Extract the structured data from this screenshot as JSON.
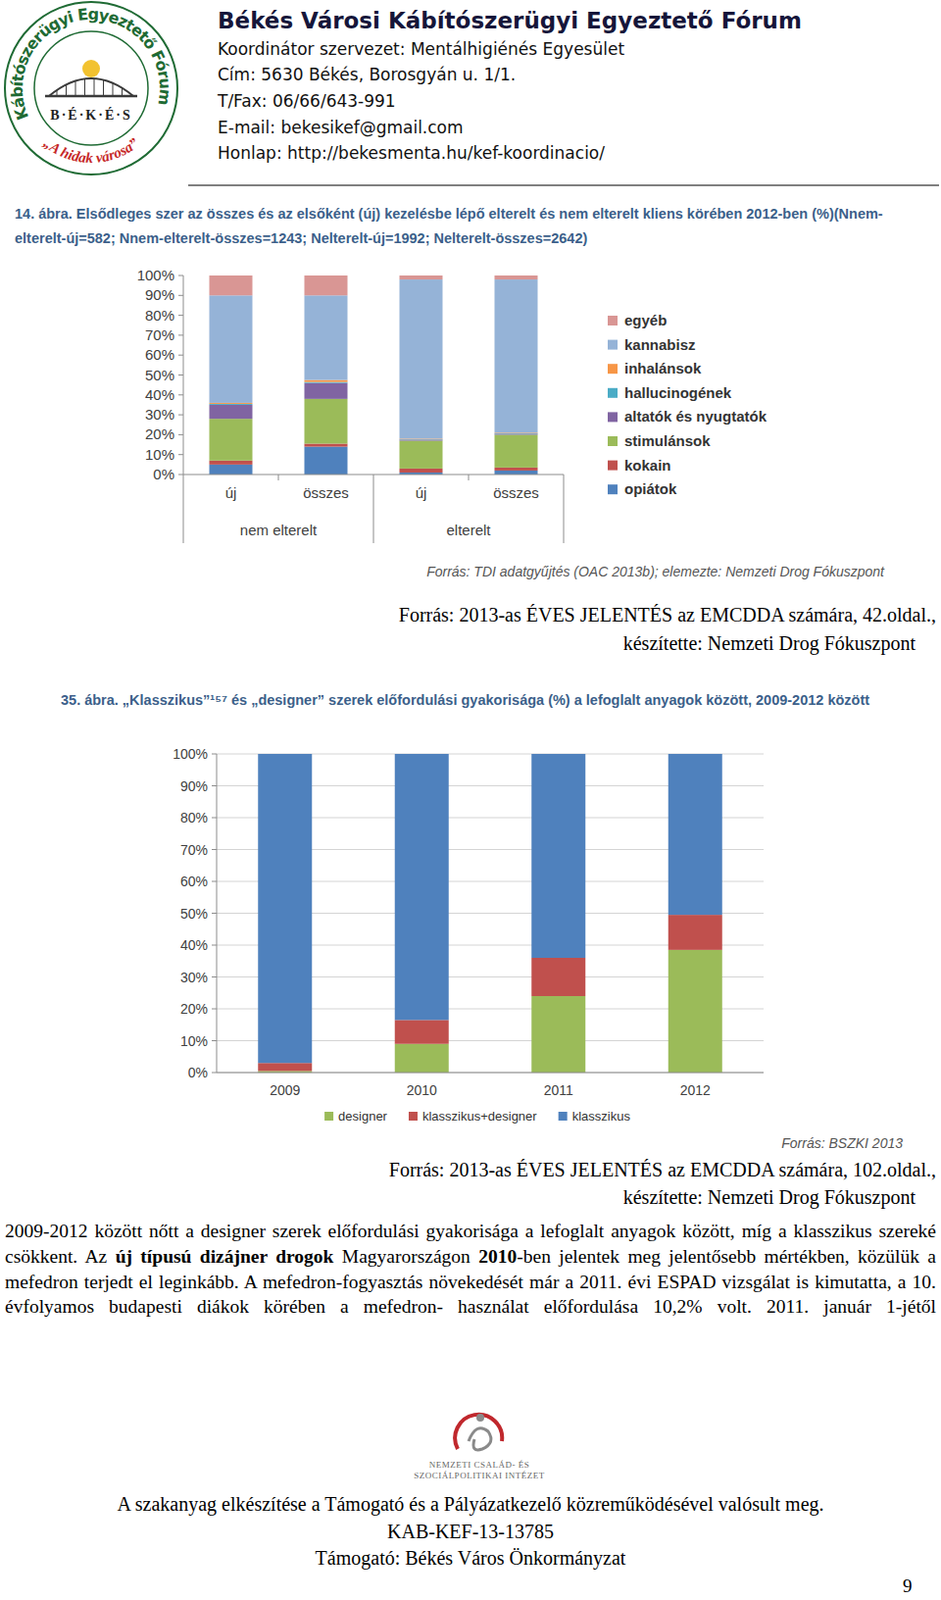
{
  "header": {
    "title": "Békés Városi Kábítószerügyi Egyeztető Fórum",
    "lines": [
      "Koordinátor szervezet: Mentálhigiénés Egyesület",
      "Cím: 5630 Békés, Borosgyán u. 1/1.",
      "T/Fax: 06/66/643-991",
      "E-mail: bekesikef@gmail.com",
      "Honlap: http://bekesmenta.hu/kef-koordinacio/"
    ],
    "logo": {
      "ring_text": "Kábítószerügyi Egyeztető Fórum",
      "center_text": "B·É·K·É·S",
      "motto": "„A hidak városa”"
    }
  },
  "chart_data": [
    {
      "type": "bar",
      "stacked": true,
      "title": "14. ábra. Elsődleges szer az összes és az elsőként (új) kezelésbe lépő elterelt és nem elterelt kliens körében 2012-ben (%)(Nnem-elterelt-új=582; Nnem-elterelt-összes=1243; Nelterelt-új=1992; Nelterelt-összes=2642)",
      "categories": [
        "új",
        "összes",
        "új",
        "összes"
      ],
      "category_groups": [
        "nem elterelt",
        "elterelt"
      ],
      "series": [
        {
          "name": "opiátok",
          "color": "#4f81bd",
          "values": [
            5,
            14,
            1,
            2
          ]
        },
        {
          "name": "kokain",
          "color": "#c0504d",
          "values": [
            2,
            1.5,
            2,
            1.5
          ]
        },
        {
          "name": "stimulánsok",
          "color": "#9bbb59",
          "values": [
            21,
            22.5,
            14,
            16.5
          ]
        },
        {
          "name": "altatók és nyugtatók",
          "color": "#8064a2",
          "values": [
            7,
            8,
            0.5,
            0.5
          ]
        },
        {
          "name": "hallucinogének",
          "color": "#4bacc6",
          "values": [
            0.5,
            0.5,
            0.2,
            0.2
          ]
        },
        {
          "name": "inhalánsok",
          "color": "#f79646",
          "values": [
            0.5,
            1,
            0.3,
            0.3
          ]
        },
        {
          "name": "kannabisz",
          "color": "#95b3d7",
          "values": [
            54,
            42.5,
            80,
            77
          ]
        },
        {
          "name": "egyéb",
          "color": "#d99694",
          "values": [
            10,
            10,
            2,
            2
          ]
        }
      ],
      "ylim": [
        0,
        100
      ],
      "yticks": [
        {
          "value": 0,
          "label": "0%"
        },
        {
          "value": 10,
          "label": "10%"
        },
        {
          "value": 20,
          "label": "20%"
        },
        {
          "value": 30,
          "label": "30%"
        },
        {
          "value": 40,
          "label": "40%"
        },
        {
          "value": 50,
          "label": "50%"
        },
        {
          "value": 60,
          "label": "60%"
        },
        {
          "value": 70,
          "label": "70%"
        },
        {
          "value": 80,
          "label": "80%"
        },
        {
          "value": 90,
          "label": "90%"
        },
        {
          "value": 100,
          "label": "100%"
        }
      ],
      "grid": false,
      "legend": "right",
      "annotations": [
        "Forrás: TDI adatgyűjtés (OAC 2013b); elemezte: Nemzeti Drog Fókuszpont"
      ]
    },
    {
      "type": "bar",
      "stacked": true,
      "title": "35. ábra. „Klasszikus”¹⁵⁷ és „designer” szerek előfordulási gyakorisága (%) a lefoglalt anyagok között, 2009-2012 között",
      "categories": [
        "2009",
        "2010",
        "2011",
        "2012"
      ],
      "series": [
        {
          "name": "designer",
          "color": "#9bbb59",
          "values": [
            0.5,
            9,
            24,
            38.5
          ]
        },
        {
          "name": "klasszikus+designer",
          "color": "#c0504d",
          "values": [
            2.5,
            7.5,
            12,
            11
          ]
        },
        {
          "name": "klasszikus",
          "color": "#4f81bd",
          "values": [
            97,
            83.5,
            64,
            50.5
          ]
        }
      ],
      "ylim": [
        0,
        100
      ],
      "yticks": [
        {
          "value": 0,
          "label": "0%"
        },
        {
          "value": 10,
          "label": "10%"
        },
        {
          "value": 20,
          "label": "20%"
        },
        {
          "value": 30,
          "label": "30%"
        },
        {
          "value": 40,
          "label": "40%"
        },
        {
          "value": 50,
          "label": "50%"
        },
        {
          "value": 60,
          "label": "60%"
        },
        {
          "value": 70,
          "label": "70%"
        },
        {
          "value": 80,
          "label": "80%"
        },
        {
          "value": 90,
          "label": "90%"
        },
        {
          "value": 100,
          "label": "100%"
        }
      ],
      "grid": true,
      "legend": "bottom",
      "annotations": [
        "Forrás: BSZKI 2013"
      ]
    }
  ],
  "captions": [
    [
      "Forrás: 2013-as ÉVES JELENTÉS az EMCDDA számára, 42.oldal.,",
      "készítette: Nemzeti Drog Fókuszpont"
    ],
    [
      "Forrás: 2013-as ÉVES JELENTÉS az EMCDDA számára, 102.oldal.,",
      "készítette: Nemzeti Drog Fókuszpont"
    ]
  ],
  "paragraph": [
    {
      "text": "2009-2012 között nőtt a designer szerek előfordulási gyakorisága a lefoglalt anyagok között, míg a klasszikus szereké csökkent. Az ",
      "bold": false
    },
    {
      "text": "új típusú dizájner drogok",
      "bold": true
    },
    {
      "text": " Magyarországon ",
      "bold": false
    },
    {
      "text": "2010",
      "bold": true
    },
    {
      "text": "-ben jelentek meg jelentősebb mértékben, közülük a mefedron terjedt el leginkább. A mefedron-fogyasztás növekedését már a 2011. évi ESPAD vizsgálat is kimutatta, a 10. évfolyamos budapesti diákok körében a mefedron- használat előfordulása 10,2% volt. 2011. január 1-jétől",
      "bold": false
    }
  ],
  "footer": {
    "logo_text": [
      "NEMZETI CSALÁD- ÉS",
      "SZOCIÁLPOLITIKAI INTÉZET"
    ],
    "lines": [
      "A szakanyag elkészítése a Támogató és a Pályázatkezelő közreműködésével valósult meg.",
      "KAB-KEF-13-13785",
      "Támogató: Békés Város Önkormányzat"
    ],
    "page_number": 9
  }
}
